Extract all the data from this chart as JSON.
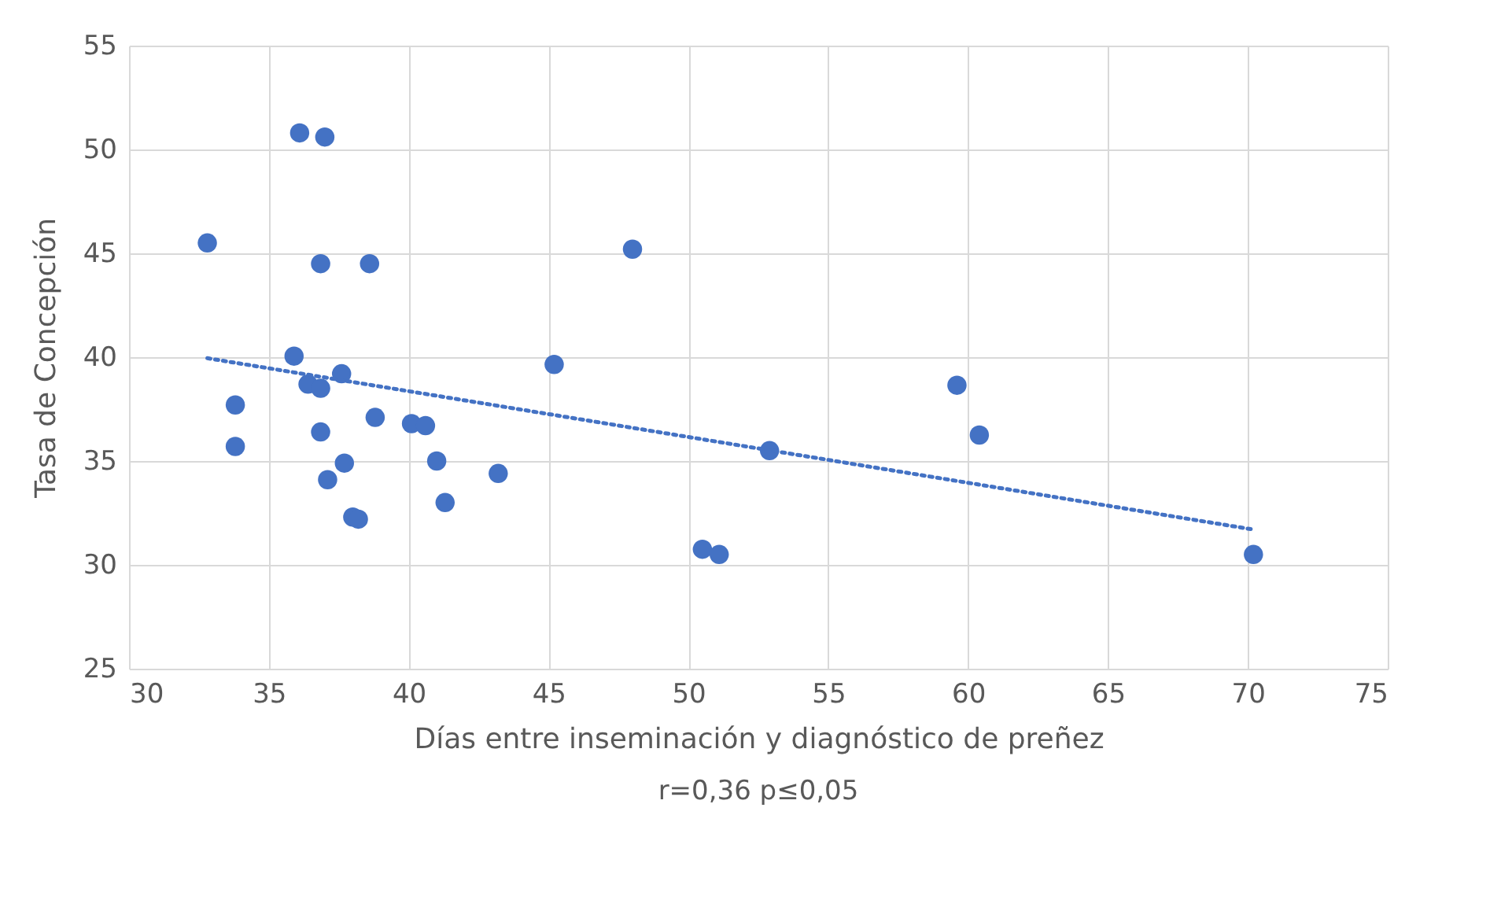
{
  "chart_data": {
    "type": "scatter",
    "xlabel": "Días entre inseminación y diagnóstico de preñez",
    "ylabel": "Tasa de Concepción",
    "annotations": [
      "r=0,36  p≤0,05"
    ],
    "series": [
      {
        "color": "#4472c4",
        "marker": "circle",
        "x": [
          32.8,
          33.8,
          33.8,
          36.1,
          37.0,
          36.85,
          38.6,
          35.9,
          36.4,
          36.85,
          37.6,
          36.85,
          38.8,
          40.1,
          40.6,
          37.7,
          37.1,
          38.0,
          38.2,
          41.0,
          41.3,
          43.2,
          45.2,
          48.0,
          52.9,
          50.5,
          51.1,
          59.6,
          60.4,
          70.2
        ],
        "values": [
          45.5,
          37.7,
          35.7,
          50.8,
          50.6,
          44.5,
          44.5,
          40.05,
          38.7,
          38.5,
          39.2,
          36.4,
          37.1,
          36.8,
          36.7,
          34.9,
          34.1,
          32.3,
          32.2,
          35.0,
          33.0,
          34.4,
          39.65,
          45.2,
          35.5,
          30.75,
          30.5,
          38.65,
          36.25,
          30.5
        ]
      },
      {
        "type": "line",
        "color": "#4472c4",
        "line_style": "dotted",
        "x": [
          32.8,
          70.2
        ],
        "values": [
          39.95,
          31.7
        ]
      }
    ],
    "xlim": [
      30,
      75
    ],
    "xticks": [
      30,
      35,
      40,
      45,
      50,
      55,
      60,
      65,
      70,
      75
    ],
    "ylim": [
      25,
      55
    ],
    "yticks": [
      25,
      30,
      35,
      40,
      45,
      50,
      55
    ],
    "grid": true
  }
}
